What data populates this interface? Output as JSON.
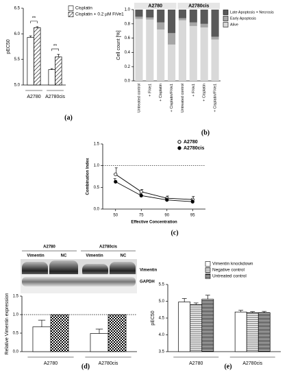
{
  "panel_labels": [
    "(a)",
    "(b)",
    "(c)",
    "(d)",
    "(e)"
  ],
  "blot": {
    "cell_lines": [
      "A2780",
      "A2780cis"
    ],
    "lanes": [
      "Vimentin",
      "NC",
      "Vimentin",
      "NC"
    ],
    "bands": [
      "Vimentin",
      "GAPDH"
    ]
  },
  "chart_data": [
    {
      "type": "bar",
      "y_label": "pEC50",
      "categories": [
        "A2780",
        "A2780cis"
      ],
      "series": [
        {
          "name": "Cisplatin",
          "color": "#ffffff",
          "values": [
            5.93,
            5.3
          ],
          "errors": [
            0.03,
            0.02
          ]
        },
        {
          "name": "Cisplatin + 0.2 µM FiVe1",
          "color": "#ffffff",
          "pattern": "hatch",
          "values": [
            6.12,
            5.55
          ],
          "errors": [
            0.02,
            0.05
          ]
        }
      ],
      "annotations": [
        "**",
        "**"
      ],
      "ylim": [
        5.0,
        6.5
      ],
      "yticks": [
        {
          "value": 5.0,
          "label": "5.0"
        },
        5.5,
        {
          "value": 6.0,
          "label": "6.0"
        },
        6.5
      ]
    },
    {
      "type": "stacked_bar",
      "y_label": "Cell count [%]",
      "groups": [
        "A2780",
        "A2780cis"
      ],
      "categories": [
        "Untreated control",
        "+ FiVe1",
        "+ Cisplatin",
        "+ Cisplatin/FiVe1",
        "Untreated control",
        "+ FiVe1",
        "+ Cisplatin",
        "+ Cisplatin/FiVe1"
      ],
      "series": [
        {
          "name": "Alive",
          "color": "#d9d9d9",
          "values": [
            0.87,
            0.86,
            0.72,
            0.51,
            0.85,
            0.77,
            0.75,
            0.58
          ]
        },
        {
          "name": "Early Apoptosis",
          "color": "#a6a6a6",
          "values": [
            0.03,
            0.03,
            0.1,
            0.16,
            0.03,
            0.05,
            0.05,
            0.04
          ]
        },
        {
          "name": "Late Apoptosis + Necrosis",
          "color": "#595959",
          "values": [
            0.1,
            0.11,
            0.18,
            0.33,
            0.12,
            0.18,
            0.2,
            0.38
          ]
        }
      ],
      "ylim": [
        0,
        1.0
      ],
      "yticks": [
        {
          "value": 0,
          "label": "0.0"
        },
        0.2,
        0.4,
        0.6,
        0.8,
        {
          "value": 1.0,
          "label": "1.0"
        }
      ]
    },
    {
      "type": "line",
      "y_label": "Combination Index",
      "x_label": "Effective Concentration",
      "categories": [
        50,
        75,
        90,
        95
      ],
      "series": [
        {
          "name": "A2780",
          "color": "#000000",
          "marker": "open",
          "values": [
            0.8,
            0.4,
            0.25,
            0.22
          ],
          "errors": [
            0.15,
            0.05,
            0.05,
            0.07
          ]
        },
        {
          "name": "A2780cis",
          "color": "#000000",
          "marker": "filled",
          "values": [
            0.63,
            0.31,
            0.21,
            0.17
          ],
          "errors": [
            0.07,
            0.04,
            0.04,
            0.05
          ]
        }
      ],
      "reference_line": 1.0,
      "ylim": [
        0,
        1.5
      ],
      "yticks": [
        {
          "value": 0,
          "label": "0.0"
        },
        0.5,
        {
          "value": 1.0,
          "label": "1.0"
        },
        1.5
      ]
    },
    {
      "type": "bar",
      "y_label": "Relative Vimentin expression",
      "categories": [
        "A2780",
        "A2780cis"
      ],
      "series": [
        {
          "color": "#ffffff",
          "values": [
            0.67,
            0.49
          ],
          "errors": [
            0.18,
            0.12
          ]
        },
        {
          "color": "#ffffff",
          "pattern": "checker",
          "values": [
            1.0,
            1.0
          ]
        }
      ],
      "reference_line": 1.0,
      "ylim": [
        0,
        1.5
      ],
      "yticks": [
        {
          "value": 0,
          "label": "0.0"
        },
        0.5,
        {
          "value": 1.0,
          "label": "1.0"
        },
        1.5
      ]
    },
    {
      "type": "bar",
      "y_label": "pEC50",
      "categories": [
        "A2780",
        "A2780cis"
      ],
      "series": [
        {
          "name": "Vimentin knockdown",
          "color": "#ffffff",
          "values": [
            4.98,
            4.68
          ],
          "errors": [
            0.1,
            0.05
          ]
        },
        {
          "name": "Negative control",
          "color": "#ffffff",
          "pattern": "hstripe",
          "values": [
            4.9,
            4.66
          ],
          "errors": [
            0.05,
            0.03
          ]
        },
        {
          "name": "Untreated control",
          "color": "#ffffff",
          "pattern": "hstripe2",
          "values": [
            5.06,
            4.66
          ],
          "errors": [
            0.12,
            0.04
          ]
        }
      ],
      "ylim": [
        3.5,
        5.5
      ],
      "yticks": [
        3.5,
        {
          "value": 4.0,
          "label": "4.0"
        },
        4.5,
        {
          "value": 5.0,
          "label": "5.0"
        },
        5.5
      ]
    }
  ]
}
